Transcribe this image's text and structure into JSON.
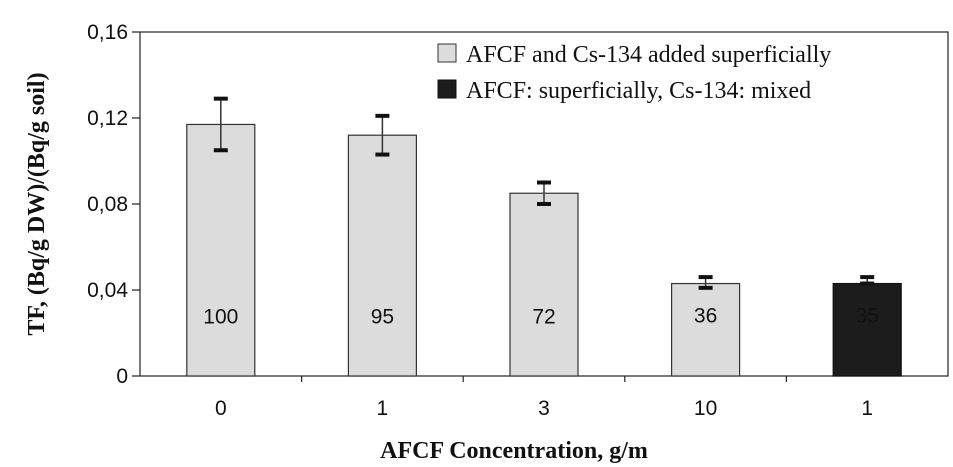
{
  "chart_data": {
    "type": "bar",
    "title": "",
    "xlabel": "AFCF Concentration, g/m",
    "ylabel": "TF, (Bq/g DW)/(Bq/g soil)",
    "ylim": [
      0,
      0.16
    ],
    "yticks": [
      {
        "value": 0,
        "label": "0"
      },
      {
        "value": 0.04,
        "label": "0,04"
      },
      {
        "value": 0.08,
        "label": "0,08"
      },
      {
        "value": 0.12,
        "label": "0,12"
      },
      {
        "value": 0.16,
        "label": "0,16"
      }
    ],
    "grid": false,
    "legend_position": "top-right",
    "series": [
      {
        "name": "AFCF and Cs-134 added superficially",
        "color": "#dcdcdc"
      },
      {
        "name": "AFCF: superficially, Cs-134: mixed",
        "color": "#1c1c1c"
      }
    ],
    "bars": [
      {
        "category": "0",
        "value": 0.117,
        "err_low": 0.105,
        "err_high": 0.129,
        "label": "100",
        "series": 0
      },
      {
        "category": "1",
        "value": 0.112,
        "err_low": 0.103,
        "err_high": 0.121,
        "label": "95",
        "series": 0
      },
      {
        "category": "3",
        "value": 0.085,
        "err_low": 0.08,
        "err_high": 0.09,
        "label": "72",
        "series": 0
      },
      {
        "category": "10",
        "value": 0.043,
        "err_low": 0.041,
        "err_high": 0.046,
        "label": "36",
        "series": 0
      },
      {
        "category": "1",
        "value": 0.043,
        "err_low": 0.043,
        "err_high": 0.046,
        "label": "35",
        "series": 1
      }
    ]
  }
}
